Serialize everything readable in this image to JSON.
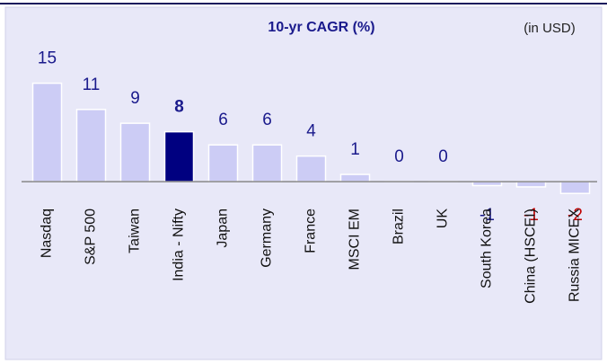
{
  "chart_data": {
    "type": "bar",
    "title": "10-yr CAGR (%)",
    "subtitle": "(in USD)",
    "categories": [
      "Nasdaq",
      "S&P 500",
      "Taiwan",
      "India - Nifty",
      "Japan",
      "Germany",
      "France",
      "MSCI EM",
      "Brazil",
      "UK",
      "South Korea",
      "China (HSCEI)",
      "Russia MICEX"
    ],
    "values": [
      15,
      11,
      8.9,
      7.6,
      5.6,
      5.6,
      3.9,
      1.1,
      0,
      0,
      -0.6,
      -0.8,
      -1.8
    ],
    "value_labels": [
      "15",
      "11",
      "9",
      "8",
      "6",
      "6",
      "4",
      "1",
      "0",
      "0",
      "-1",
      "-1",
      "-2"
    ],
    "colors": [
      "#ccccf5",
      "#ccccf5",
      "#ccccf5",
      "#000080",
      "#ccccf5",
      "#ccccf5",
      "#ccccf5",
      "#ccccf5",
      "#ccccf5",
      "#ccccf5",
      "#ccccf5",
      "#ccccf5",
      "#ccccf5"
    ],
    "value_label_colors": [
      "#1a1a8c",
      "#1a1a8c",
      "#1a1a8c",
      "#1a1a8c",
      "#1a1a8c",
      "#1a1a8c",
      "#1a1a8c",
      "#1a1a8c",
      "#1a1a8c",
      "#1a1a8c",
      "#1a1a8c",
      "#c00000",
      "#c00000"
    ],
    "highlight": 3,
    "ylim": [
      -3,
      17
    ],
    "grid": false
  }
}
